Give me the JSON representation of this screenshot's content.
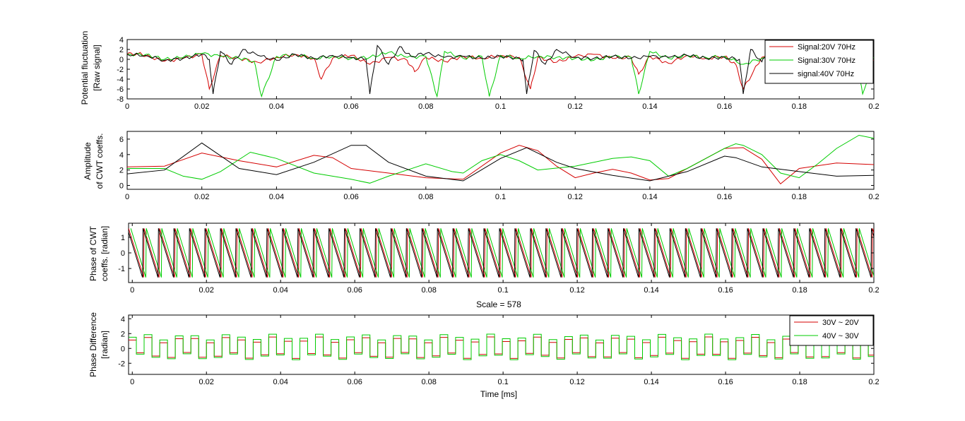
{
  "colors": {
    "red": "#d40000",
    "green": "#00cc00",
    "black": "#000000"
  },
  "chart_data": [
    {
      "type": "line",
      "ylabel": [
        "Potential fluctuation",
        "[Raw signal]"
      ],
      "xlim": [
        0,
        0.2
      ],
      "ylim": [
        -8,
        4
      ],
      "xticks": [
        "0",
        "0.02",
        "0.04",
        "0.06",
        "0.08",
        "0.1",
        "0.12",
        "0.14",
        "0.16",
        "0.18",
        "0.2"
      ],
      "yticks": [
        "4",
        "2",
        "0",
        "-2",
        "-4",
        "-6",
        "-8"
      ],
      "ytick_values": [
        4,
        2,
        0,
        -2,
        -4,
        -6,
        -8
      ],
      "legend": [
        "Signal:20V 70Hz",
        "Signal:30V 70Hz",
        "signal:40V 70Hz"
      ],
      "legend_position": "top-right",
      "series": [
        {
          "name": "Signal:20V 70Hz",
          "color": "red",
          "x": [
            0,
            0.003,
            0.006,
            0.01,
            0.015,
            0.02,
            0.022,
            0.025,
            0.03,
            0.035,
            0.04,
            0.045,
            0.05,
            0.052,
            0.055,
            0.06,
            0.065,
            0.07,
            0.075,
            0.077,
            0.08,
            0.085,
            0.09,
            0.095,
            0.1,
            0.105,
            0.108,
            0.11,
            0.115,
            0.12,
            0.125,
            0.13,
            0.135,
            0.137,
            0.14,
            0.145,
            0.15,
            0.155,
            0.16,
            0.163,
            0.165,
            0.17,
            0.175,
            0.18,
            0.185,
            0.19,
            0.195,
            0.2
          ],
          "y": [
            1,
            1.2,
            0.6,
            -0.4,
            0.2,
            1,
            -6,
            0.8,
            0.2,
            -0.6,
            0.4,
            1,
            0.2,
            -4,
            0.2,
            0.8,
            -1,
            0.4,
            -0.2,
            -2.5,
            0.4,
            -0.4,
            0.6,
            0.2,
            0.8,
            0.4,
            -6,
            0.4,
            -0.6,
            0.6,
            1,
            0.2,
            0.4,
            -3,
            0.6,
            -0.8,
            0.8,
            0.2,
            0.6,
            -1,
            -6,
            0.4,
            -0.4,
            0.2,
            -0.6,
            0.4,
            0.2,
            -0.2
          ]
        },
        {
          "name": "Signal:30V 70Hz",
          "color": "green",
          "x": [
            0,
            0.005,
            0.01,
            0.015,
            0.02,
            0.025,
            0.03,
            0.034,
            0.036,
            0.04,
            0.045,
            0.05,
            0.055,
            0.06,
            0.065,
            0.07,
            0.075,
            0.08,
            0.083,
            0.085,
            0.09,
            0.095,
            0.097,
            0.1,
            0.105,
            0.11,
            0.115,
            0.12,
            0.125,
            0.13,
            0.135,
            0.137,
            0.14,
            0.145,
            0.15,
            0.155,
            0.16,
            0.165,
            0.17,
            0.175,
            0.18,
            0.185,
            0.19,
            0.195,
            0.197,
            0.2
          ],
          "y": [
            1,
            1,
            0,
            0.4,
            1.2,
            0.6,
            0.2,
            -0.4,
            -7.5,
            0.6,
            1,
            0.2,
            0.6,
            0.2,
            0.4,
            1.4,
            0.4,
            0.6,
            -7.5,
            1.6,
            0.2,
            0.6,
            -7.5,
            0.8,
            0.2,
            0.6,
            0.4,
            0.2,
            -0.2,
            0.6,
            0.4,
            -7,
            1.6,
            0.2,
            0.8,
            0.4,
            0.6,
            -1,
            0.2,
            0.6,
            0.2,
            0.4,
            0.6,
            0.2,
            -7,
            0.4
          ]
        },
        {
          "name": "signal:40V 70Hz",
          "color": "black",
          "x": [
            0,
            0.005,
            0.01,
            0.015,
            0.02,
            0.022,
            0.023,
            0.025,
            0.028,
            0.031,
            0.035,
            0.04,
            0.045,
            0.05,
            0.055,
            0.06,
            0.064,
            0.065,
            0.067,
            0.07,
            0.073,
            0.076,
            0.08,
            0.085,
            0.09,
            0.095,
            0.1,
            0.105,
            0.106,
            0.107,
            0.109,
            0.112,
            0.115,
            0.12,
            0.125,
            0.13,
            0.135,
            0.14,
            0.145,
            0.15,
            0.155,
            0.16,
            0.164,
            0.165,
            0.167,
            0.17,
            0.172,
            0.175,
            0.18,
            0.185,
            0.19,
            0.195,
            0.2
          ],
          "y": [
            1,
            0.8,
            -0.2,
            0.2,
            1,
            0,
            -7,
            1.6,
            -1,
            2,
            0.8,
            -0.2,
            1,
            0.2,
            0.8,
            0.4,
            0,
            -7,
            2.8,
            -1,
            2.6,
            0.6,
            1.2,
            0.4,
            0.6,
            0.2,
            0.6,
            0.2,
            0,
            -7,
            1.8,
            -1,
            2,
            0.4,
            0.2,
            0.6,
            0.2,
            0.6,
            0.4,
            0.8,
            0.2,
            0.4,
            0,
            -7,
            2,
            -0.5,
            2,
            0.4,
            0.6,
            0.4,
            0.2,
            0.4,
            0.2
          ]
        }
      ]
    },
    {
      "type": "line",
      "ylabel": [
        "Amplitude",
        "of CWT coeffs."
      ],
      "xlim": [
        0,
        0.2
      ],
      "ylim": [
        -0.5,
        7
      ],
      "xticks": [
        "0",
        "0.02",
        "0.04",
        "0.06",
        "0.08",
        "0.1",
        "0.12",
        "0.14",
        "0.16",
        "0.18",
        "0.2"
      ],
      "yticks": [
        "6",
        "4",
        "2",
        "0"
      ],
      "ytick_values": [
        6,
        4,
        2,
        0
      ],
      "series": [
        {
          "name": "red",
          "color": "red",
          "x": [
            0,
            0.01,
            0.02,
            0.03,
            0.04,
            0.05,
            0.055,
            0.06,
            0.07,
            0.08,
            0.09,
            0.1,
            0.105,
            0.11,
            0.115,
            0.12,
            0.125,
            0.13,
            0.135,
            0.14,
            0.145,
            0.15,
            0.16,
            0.165,
            0.17,
            0.175,
            0.18,
            0.19,
            0.2
          ],
          "y": [
            2.4,
            2.5,
            4.2,
            3.2,
            2.4,
            3.9,
            3.6,
            2.2,
            1.6,
            1,
            0.8,
            4.2,
            5.2,
            4.5,
            2.5,
            1,
            1.6,
            2.1,
            1.6,
            0.7,
            0.9,
            2.2,
            4.8,
            4.9,
            3.4,
            0.2,
            2.2,
            2.9,
            2.7
          ]
        },
        {
          "name": "green",
          "color": "green",
          "x": [
            0,
            0.01,
            0.015,
            0.02,
            0.025,
            0.033,
            0.04,
            0.05,
            0.06,
            0.065,
            0.07,
            0.075,
            0.08,
            0.087,
            0.09,
            0.095,
            0.1,
            0.105,
            0.11,
            0.12,
            0.13,
            0.135,
            0.14,
            0.145,
            0.15,
            0.16,
            0.163,
            0.165,
            0.17,
            0.175,
            0.18,
            0.185,
            0.19,
            0.196,
            0.2
          ],
          "y": [
            2.2,
            2.2,
            1.2,
            0.8,
            1.8,
            4.3,
            3.5,
            1.6,
            0.8,
            0.3,
            1.2,
            2,
            2.8,
            1.8,
            1.6,
            3.2,
            4,
            3.2,
            2,
            2.5,
            3.5,
            3.7,
            3.2,
            1.2,
            2.2,
            4.8,
            5.4,
            5.2,
            4,
            1.6,
            1,
            2.8,
            4.8,
            6.5,
            6.1
          ]
        },
        {
          "name": "black",
          "color": "black",
          "x": [
            0,
            0.01,
            0.02,
            0.03,
            0.04,
            0.05,
            0.06,
            0.064,
            0.07,
            0.08,
            0.09,
            0.1,
            0.107,
            0.115,
            0.12,
            0.13,
            0.14,
            0.15,
            0.16,
            0.163,
            0.17,
            0.18,
            0.19,
            0.2
          ],
          "y": [
            1.5,
            2,
            5.5,
            2.2,
            1.4,
            3,
            5.2,
            5.2,
            3,
            1.2,
            0.6,
            3.5,
            4.9,
            3,
            2.2,
            1.3,
            0.6,
            1.8,
            3.8,
            3.6,
            2.4,
            1.8,
            1.2,
            1.3
          ]
        }
      ]
    },
    {
      "type": "line",
      "title": "",
      "xlabel": "Scale = 578",
      "ylabel": [
        "Phase of CWT",
        "coeffs. [radian]"
      ],
      "xlim": [
        -0.001,
        0.2
      ],
      "ylim": [
        -1.9,
        1.9
      ],
      "xticks": [
        "0",
        "0.02",
        "0.04",
        "0.06",
        "0.08",
        "0.1",
        "0.12",
        "0.14",
        "0.16",
        "0.18",
        "0.2"
      ],
      "yticks": [
        "1",
        "0",
        "-1"
      ],
      "ytick_values": [
        1,
        0,
        -1
      ],
      "sawtooth_period": 0.00418,
      "amplitude": 1.571,
      "series": [
        {
          "name": "red",
          "color": "red",
          "phase_offset": 0.0
        },
        {
          "name": "green",
          "color": "green",
          "phase_offset": 0.0006
        },
        {
          "name": "black",
          "color": "black",
          "phase_offset": -0.0003
        }
      ]
    },
    {
      "type": "line",
      "xlabel": "Time [ms]",
      "ylabel": [
        "Phase Difference",
        "[radian]"
      ],
      "xlim": [
        -0.001,
        0.2
      ],
      "ylim": [
        -3.5,
        4.5
      ],
      "xticks": [
        "0",
        "0.02",
        "0.04",
        "0.06",
        "0.08",
        "0.1",
        "0.12",
        "0.14",
        "0.16",
        "0.18",
        "0.2"
      ],
      "yticks": [
        "4",
        "2",
        "0",
        "-2"
      ],
      "ytick_values": [
        4,
        2,
        0,
        -2
      ],
      "legend": [
        "30V ~ 20V",
        "40V ~ 30V"
      ],
      "legend_position": "top-right",
      "series": [
        {
          "name": "30V ~ 20V",
          "color": "red",
          "square_amplitude": 1.5,
          "period": 0.0042,
          "base": 0.1
        },
        {
          "name": "40V ~ 30V",
          "color": "green",
          "square_amplitude": 1.9,
          "period": 0.0042,
          "base": 0.2
        }
      ]
    }
  ]
}
